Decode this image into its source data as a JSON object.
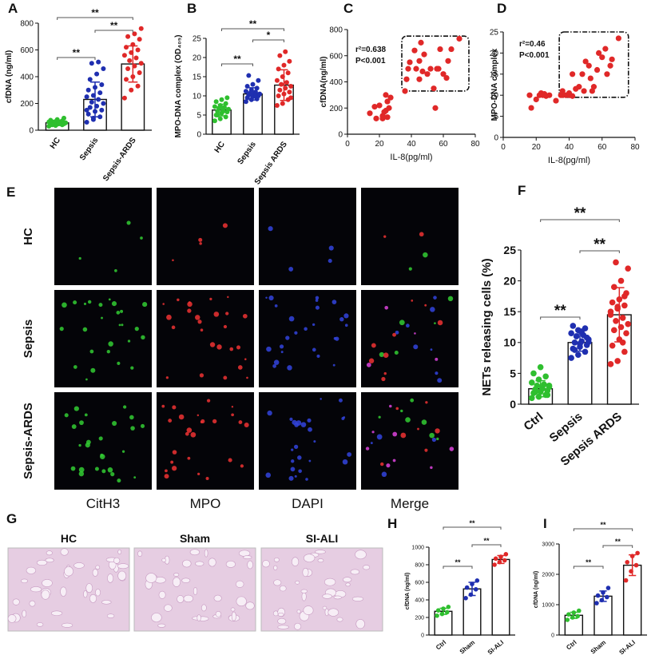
{
  "chart_data": [
    {
      "type": "bar",
      "panel": "A",
      "ylabel": "cfDNA (ng/ml)",
      "categories": [
        "HC",
        "Sepsis",
        "Sepsis-ARDS"
      ],
      "values": [
        55,
        230,
        495
      ],
      "errors": [
        20,
        130,
        135
      ],
      "colors": [
        "#2fbf2f",
        "#1f2fb0",
        "#e02828"
      ],
      "points": [
        [
          30,
          35,
          40,
          42,
          45,
          48,
          50,
          52,
          55,
          58,
          60,
          62,
          65,
          70,
          75,
          80,
          90,
          40,
          50,
          55
        ],
        [
          60,
          80,
          100,
          120,
          140,
          150,
          170,
          180,
          200,
          210,
          230,
          250,
          260,
          280,
          300,
          320,
          340,
          380,
          420,
          460,
          500,
          510,
          150,
          90
        ],
        [
          240,
          300,
          330,
          380,
          400,
          430,
          460,
          480,
          500,
          520,
          540,
          560,
          580,
          600,
          620,
          640,
          680,
          700,
          720,
          760
        ]
      ],
      "ylim": [
        0,
        800
      ],
      "yticks": [
        0,
        200,
        400,
        600,
        800
      ],
      "comparison_color": "#e02828",
      "comparisons": [
        {
          "from": 0,
          "to": 1,
          "label": "**"
        },
        {
          "from": 1,
          "to": 2,
          "label": "**"
        },
        {
          "from": 0,
          "to": 2,
          "label": "**"
        }
      ]
    },
    {
      "type": "bar",
      "panel": "B",
      "ylabel": "MPO-DNA complex (OD₄₀₅)",
      "categories": [
        "HC",
        "Sepsis",
        "Sepsis ARDS"
      ],
      "values": [
        6.3,
        10.5,
        12.8
      ],
      "errors": [
        1.5,
        1.6,
        4
      ],
      "colors": [
        "#2fbf2f",
        "#1f2fb0",
        "#e02828"
      ],
      "points": [
        [
          3.5,
          4,
          4.5,
          5,
          5.5,
          5.8,
          6,
          6.2,
          6.5,
          6.8,
          7,
          7.2,
          7.5,
          8,
          8.5,
          9,
          9.5,
          5,
          6
        ],
        [
          8.5,
          9,
          9.2,
          9.5,
          9.8,
          10,
          10.2,
          10.4,
          10.5,
          10.7,
          11,
          11.2,
          11.5,
          12,
          12.5,
          13,
          14,
          15.3,
          10
        ],
        [
          7.5,
          8,
          9,
          10,
          10.5,
          11,
          11.5,
          12,
          12.5,
          13,
          13.5,
          14,
          15,
          16,
          17,
          18,
          19,
          20.5,
          21.5,
          9.5
        ]
      ],
      "ylim": [
        0,
        25
      ],
      "yticks": [
        0,
        5,
        10,
        15,
        20,
        25
      ],
      "comparison_color": "#e02828",
      "comparisons": [
        {
          "from": 0,
          "to": 1,
          "label": "**"
        },
        {
          "from": 1,
          "to": 2,
          "label": "*"
        },
        {
          "from": 0,
          "to": 2,
          "label": "**"
        }
      ]
    },
    {
      "type": "scatter",
      "panel": "C",
      "xlabel": "IL-8(pg/ml)",
      "ylabel": "cfDNA(ng/ml)",
      "color": "#e02828",
      "x": [
        14,
        17,
        18,
        20,
        22,
        23,
        24,
        25,
        25,
        26,
        27,
        22,
        24,
        36,
        37,
        38,
        39,
        42,
        43,
        45,
        46,
        47,
        48,
        50,
        52,
        54,
        56,
        57,
        58,
        60,
        62,
        63,
        65,
        70,
        55,
        45
      ],
      "y": [
        160,
        210,
        120,
        220,
        140,
        170,
        300,
        250,
        130,
        200,
        280,
        120,
        180,
        330,
        420,
        500,
        550,
        640,
        500,
        560,
        700,
        480,
        610,
        460,
        500,
        350,
        500,
        500,
        650,
        460,
        430,
        560,
        650,
        730,
        200,
        420
      ],
      "xlim": [
        0,
        80
      ],
      "xticks": [
        0,
        20,
        40,
        60,
        80
      ],
      "ylim": [
        0,
        800
      ],
      "yticks": [
        0,
        200,
        400,
        600,
        800
      ],
      "annotations": [
        "r²=0.638",
        "P<0.001"
      ],
      "highlight_box": {
        "x": [
          34,
          76
        ],
        "y": [
          330,
          750
        ]
      }
    },
    {
      "type": "scatter",
      "panel": "D",
      "xlabel": "IL-8(pg/ml)",
      "ylabel": "MPO-DNA complex",
      "color": "#e02828",
      "x": [
        16,
        17,
        20,
        22,
        23,
        24,
        25,
        26,
        28,
        32,
        35,
        36,
        38,
        40,
        40,
        42,
        44,
        46,
        48,
        49,
        50,
        52,
        53,
        54,
        55,
        57,
        58,
        60,
        62,
        63,
        65,
        66,
        70,
        42,
        36
      ],
      "y": [
        10,
        7,
        9,
        10,
        10.5,
        10,
        10.3,
        9.8,
        10,
        8.7,
        10,
        11,
        10,
        10,
        10.5,
        9.8,
        11.5,
        12,
        15,
        11,
        18,
        17,
        14,
        11,
        12,
        16,
        20,
        19,
        21,
        15,
        17,
        18.5,
        23.5,
        15,
        10
      ],
      "xlim": [
        0,
        80
      ],
      "xticks": [
        0,
        20,
        40,
        60,
        80
      ],
      "ylim": [
        0,
        25
      ],
      "yticks": [
        0,
        5,
        10,
        15,
        20,
        25
      ],
      "annotations": [
        "r²=0.46",
        "P<0.001"
      ],
      "highlight_box": {
        "x": [
          34,
          76
        ],
        "y": [
          9.5,
          25
        ]
      }
    },
    {
      "type": "bar",
      "panel": "F",
      "ylabel": "NETs releasing cells (%)",
      "categories": [
        "Ctrl",
        "Sepsis",
        "Sepsis ARDS"
      ],
      "values": [
        2.5,
        10,
        14.5
      ],
      "errors": [
        1.3,
        1.4,
        4.4
      ],
      "colors": [
        "#2fbf2f",
        "#1f2fb0",
        "#e02828"
      ],
      "points": [
        [
          1,
          1.2,
          1.5,
          1.8,
          2,
          2.2,
          2.4,
          2.6,
          2.8,
          3,
          3.2,
          3.5,
          4,
          4.5,
          5,
          6,
          1.5,
          2,
          2.5,
          3
        ],
        [
          7.5,
          8,
          8.5,
          9,
          9.3,
          9.6,
          10,
          10.2,
          10.5,
          11,
          11.2,
          11.5,
          12,
          12.3,
          12.7,
          9.8,
          10.8,
          8.8,
          11.8,
          10.1
        ],
        [
          6.5,
          7,
          8.5,
          9.5,
          10.5,
          11.5,
          12,
          12.5,
          13,
          13.5,
          14,
          15,
          15.5,
          16,
          16.5,
          17,
          18,
          19,
          20,
          22,
          23,
          10,
          14.5,
          15.8,
          17.5
        ]
      ],
      "ylim": [
        0,
        25
      ],
      "yticks": [
        0,
        5,
        10,
        15,
        20,
        25
      ],
      "comparison_color": "#e02828",
      "comparisons": [
        {
          "from": 0,
          "to": 1,
          "label": "**"
        },
        {
          "from": 1,
          "to": 2,
          "label": "**"
        },
        {
          "from": 0,
          "to": 2,
          "label": "**"
        }
      ]
    },
    {
      "type": "bar",
      "panel": "H",
      "ylabel": "cfDNA (ng/ml)",
      "categories": [
        "Ctrl",
        "Sham",
        "SI-ALI"
      ],
      "values": [
        270,
        525,
        860
      ],
      "errors": [
        35,
        75,
        45
      ],
      "colors": [
        "#2fbf2f",
        "#1f2fb0",
        "#e02828"
      ],
      "points": [
        [
          220,
          240,
          260,
          280,
          300,
          320
        ],
        [
          420,
          460,
          520,
          540,
          580,
          620
        ],
        [
          800,
          830,
          850,
          870,
          890,
          920
        ]
      ],
      "ylim": [
        0,
        1000
      ],
      "yticks": [
        0,
        200,
        400,
        600,
        800,
        1000
      ],
      "comparison_color": "#e02828",
      "comparisons": [
        {
          "from": 0,
          "to": 1,
          "label": "**"
        },
        {
          "from": 1,
          "to": 2,
          "label": "**"
        },
        {
          "from": 0,
          "to": 2,
          "label": "**"
        }
      ]
    },
    {
      "type": "bar",
      "panel": "I",
      "ylabel": "cfDNA (ng/ml)",
      "categories": [
        "Ctrl",
        "Sham",
        "SI-ALI"
      ],
      "values": [
        650,
        1280,
        2300
      ],
      "errors": [
        100,
        170,
        340
      ],
      "colors": [
        "#2fbf2f",
        "#1f2fb0",
        "#e02828"
      ],
      "points": [
        [
          500,
          580,
          620,
          680,
          740,
          800
        ],
        [
          1050,
          1150,
          1250,
          1300,
          1400,
          1550
        ],
        [
          1800,
          2100,
          2300,
          2400,
          2600,
          2700
        ]
      ],
      "ylim": [
        0,
        3000
      ],
      "yticks": [
        0,
        1000,
        2000,
        3000
      ],
      "comparison_color": "#e02828",
      "comparisons": [
        {
          "from": 0,
          "to": 1,
          "label": "**"
        },
        {
          "from": 1,
          "to": 2,
          "label": "**"
        },
        {
          "from": 0,
          "to": 2,
          "label": "**"
        }
      ]
    }
  ],
  "panel_e": {
    "label": "E",
    "rows": [
      "HC",
      "Sepsis",
      "Sepsis-ARDS"
    ],
    "columns": [
      "CitH3",
      "MPO",
      "DAPI",
      "Merge"
    ],
    "column_colors": [
      "#2fbf2f",
      "#e02828",
      "#1f2f9a",
      "#333333"
    ]
  },
  "panel_g": {
    "label": "G",
    "images": [
      "HC",
      "Sham",
      "SI-ALI"
    ]
  }
}
